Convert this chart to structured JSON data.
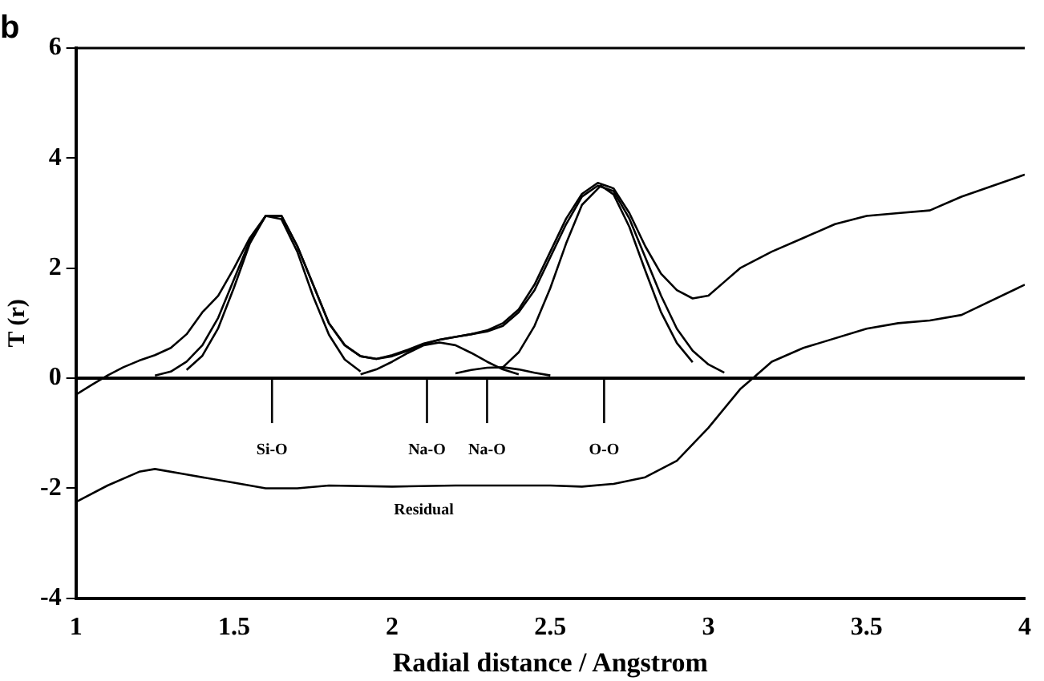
{
  "chart_data": {
    "type": "line",
    "title": "b",
    "xlabel": "Radial distance / Angstrom",
    "ylabel": "T (r)",
    "xlim": [
      1,
      4
    ],
    "xticks": [
      1,
      1.5,
      2,
      2.5,
      3,
      3.5,
      4
    ],
    "ylim": [
      -4,
      6
    ],
    "yticks": [
      -4,
      -2,
      0,
      2,
      4,
      6
    ],
    "grid": false,
    "legend": false,
    "marker": "none",
    "line_style": "solid",
    "ref_lines": [
      {
        "axis": "y",
        "value": 0,
        "color": "#000000"
      }
    ],
    "annotations": [
      {
        "text": "Si-O",
        "x": 1.62,
        "y": 0
      },
      {
        "text": "Na-O",
        "x": 2.11,
        "y": 0
      },
      {
        "text": "Na-O",
        "x": 2.3,
        "y": 0
      },
      {
        "text": "O-O",
        "x": 2.67,
        "y": 0
      },
      {
        "text": "Residual",
        "x": 2.1,
        "y": -1.96
      }
    ],
    "series": [
      {
        "color": "#000000",
        "x": [
          1,
          1.05,
          1.1,
          1.15,
          1.2,
          1.25,
          1.3,
          1.35,
          1.4,
          1.45,
          1.5,
          1.55,
          1.6,
          1.65,
          1.7,
          1.75,
          1.8,
          1.85,
          1.9,
          1.95,
          2,
          2.05,
          2.1,
          2.15,
          2.2,
          2.25,
          2.3,
          2.35,
          2.4,
          2.45,
          2.5,
          2.55,
          2.6,
          2.65,
          2.7,
          2.75,
          2.8,
          2.85,
          2.9,
          2.95,
          3,
          3.05,
          3.1,
          3.2,
          3.3,
          3.4,
          3.5,
          3.6,
          3.7,
          3.8,
          3.9,
          4
        ],
        "values": [
          -0.3,
          -0.12,
          0.05,
          0.2,
          0.32,
          0.42,
          0.55,
          0.8,
          1.2,
          1.5,
          2,
          2.55,
          2.95,
          2.95,
          2.4,
          1.7,
          1,
          0.6,
          0.4,
          0.35,
          0.42,
          0.52,
          0.63,
          0.7,
          0.75,
          0.8,
          0.87,
          1,
          1.25,
          1.7,
          2.3,
          2.9,
          3.35,
          3.55,
          3.45,
          3,
          2.4,
          1.9,
          1.6,
          1.45,
          1.5,
          1.75,
          2,
          2.3,
          2.55,
          2.8,
          2.95,
          3,
          3.05,
          3.3,
          3.5,
          3.7
        ]
      },
      {
        "color": "#000000",
        "x": [
          1.25,
          1.3,
          1.35,
          1.4,
          1.45,
          1.5,
          1.55,
          1.6,
          1.65,
          1.7,
          1.75,
          1.8,
          1.85,
          1.9,
          1.95,
          2,
          2.05,
          2.1,
          2.15,
          2.2,
          2.25,
          2.3,
          2.35,
          2.4,
          2.45,
          2.5,
          2.55,
          2.6,
          2.65,
          2.7,
          2.75,
          2.8,
          2.85,
          2.9,
          2.95,
          3,
          3.05
        ],
        "values": [
          0.05,
          0.12,
          0.3,
          0.6,
          1.1,
          1.8,
          2.5,
          2.95,
          2.95,
          2.4,
          1.7,
          1,
          0.6,
          0.4,
          0.35,
          0.4,
          0.5,
          0.62,
          0.7,
          0.75,
          0.8,
          0.85,
          0.95,
          1.2,
          1.6,
          2.2,
          2.8,
          3.3,
          3.5,
          3.4,
          2.9,
          2.2,
          1.5,
          0.9,
          0.5,
          0.25,
          0.1
        ]
      },
      {
        "color": "#000000",
        "x": [
          1.35,
          1.4,
          1.45,
          1.5,
          1.55,
          1.6,
          1.65,
          1.7,
          1.75,
          1.8,
          1.85,
          1.9
        ],
        "values": [
          0.15,
          0.41,
          0.91,
          1.65,
          2.45,
          2.95,
          2.89,
          2.3,
          1.49,
          0.79,
          0.34,
          0.12
        ]
      },
      {
        "color": "#000000",
        "x": [
          1.9,
          1.95,
          2,
          2.05,
          2.1,
          2.15,
          2.2,
          2.25,
          2.3,
          2.35,
          2.4
        ],
        "values": [
          0.07,
          0.16,
          0.3,
          0.46,
          0.6,
          0.65,
          0.6,
          0.46,
          0.3,
          0.16,
          0.07
        ]
      },
      {
        "color": "#000000",
        "x": [
          2.2,
          2.25,
          2.3,
          2.35,
          2.4,
          2.45,
          2.5
        ],
        "values": [
          0.09,
          0.15,
          0.19,
          0.2,
          0.16,
          0.1,
          0.05
        ]
      },
      {
        "color": "#000000",
        "x": [
          2.35,
          2.4,
          2.45,
          2.5,
          2.55,
          2.6,
          2.66,
          2.7,
          2.75,
          2.8,
          2.85,
          2.9,
          2.95
        ],
        "values": [
          0.2,
          0.47,
          0.95,
          1.64,
          2.45,
          3.15,
          3.5,
          3.34,
          2.75,
          1.96,
          1.2,
          0.64,
          0.29
        ]
      },
      {
        "color": "#000000",
        "x": [
          1,
          1.1,
          1.2,
          1.25,
          1.35,
          1.5,
          1.6,
          1.7,
          1.8,
          2,
          2.2,
          2.5,
          2.6,
          2.7,
          2.8,
          2.9,
          3,
          3.1,
          3.15,
          3.2,
          3.3,
          3.5,
          3.6,
          3.7,
          3.8,
          4
        ],
        "values": [
          -2.25,
          -1.95,
          -1.7,
          -1.65,
          -1.75,
          -1.9,
          -2,
          -2,
          -1.95,
          -1.97,
          -1.95,
          -1.95,
          -1.97,
          -1.92,
          -1.8,
          -1.5,
          -0.9,
          -0.2,
          0.05,
          0.3,
          0.55,
          0.9,
          1,
          1.05,
          1.15,
          1.7
        ]
      }
    ]
  }
}
